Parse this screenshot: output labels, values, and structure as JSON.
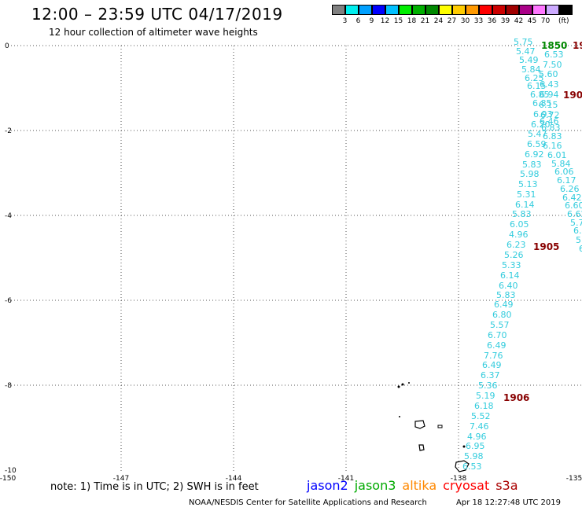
{
  "header": {
    "title": "12:00 – 23:59 UTC 04/17/2019",
    "subtitle": "12 hour collection of altimeter wave heights"
  },
  "scale": {
    "unit": "(ft)",
    "colors": [
      "#808080",
      "#00eeee",
      "#00a0ff",
      "#0000ff",
      "#00c0ff",
      "#00ee00",
      "#00b000",
      "#008800",
      "#ffff00",
      "#ffcc00",
      "#ff9900",
      "#ff0000",
      "#cc0000",
      "#a00000",
      "#aa0088",
      "#ff77ff",
      "#ccaaff",
      "#000000"
    ],
    "labels": [
      "3",
      "6",
      "9",
      "12",
      "15",
      "18",
      "21",
      "24",
      "27",
      "30",
      "33",
      "36",
      "39",
      "42",
      "45",
      "70"
    ]
  },
  "axes": {
    "y_ticks": [
      "0",
      "-2",
      "-4",
      "-6",
      "-8",
      "-10"
    ],
    "x_ticks": [
      "-150",
      "-147",
      "-144",
      "-141",
      "-138",
      "-135"
    ]
  },
  "tracks": {
    "main_west": {
      "color": "#33ccdd",
      "values": [
        "5.75",
        "5.47",
        "5.49",
        "5.84",
        "6.25",
        "6.15",
        "6.85",
        "6.85",
        "6.93",
        "6.20",
        "5.47",
        "6.59",
        "6.92",
        "5.83",
        "5.98",
        "5.13",
        "5.31",
        "6.14",
        "5.83",
        "6.05",
        "4.96",
        "6.23",
        "5.26",
        "5.33",
        "6.14",
        "6.40",
        "5.83",
        "6.49",
        "6.80",
        "5.57",
        "6.70",
        "6.49",
        "7.76",
        "6.49",
        "6.37",
        "5.36",
        "5.19",
        "6.18",
        "5.52",
        "7.46",
        "4.96",
        "6.95",
        "5.98",
        "6.53"
      ]
    },
    "main_east": {
      "color": "#33ccdd",
      "values": [
        "6.53",
        "7.50",
        "5.60",
        "6.43",
        "6.94",
        "6.15",
        "6.72",
        "6.46",
        "6.83",
        "6.83",
        "6.16",
        "6.01",
        "5.84",
        "6.06",
        "6.17",
        "6.26",
        "6.42",
        "6.60",
        "6.62",
        "5.7",
        "6.",
        "5",
        "6"
      ]
    },
    "time_labels": [
      {
        "text": "1850",
        "color": "#008800"
      },
      {
        "text": "19",
        "color": "#880000"
      },
      {
        "text": "190",
        "color": "#880000"
      },
      {
        "text": "1905",
        "color": "#880000"
      },
      {
        "text": "1906",
        "color": "#880000"
      }
    ]
  },
  "footer": {
    "note": "note: 1) Time is in UTC; 2) SWH is in feet",
    "satellites": [
      {
        "name": "jason2",
        "color": "#0000ff"
      },
      {
        "name": "jason3",
        "color": "#00aa00"
      },
      {
        "name": "altika",
        "color": "#ff8800"
      },
      {
        "name": "cryosat",
        "color": "#ff0000"
      },
      {
        "name": "s3a",
        "color": "#aa0000"
      }
    ],
    "credit": "NOAA/NESDIS Center for Satellite Applications and Research",
    "timestamp": "Apr 18 12:27:48 UTC 2019"
  }
}
